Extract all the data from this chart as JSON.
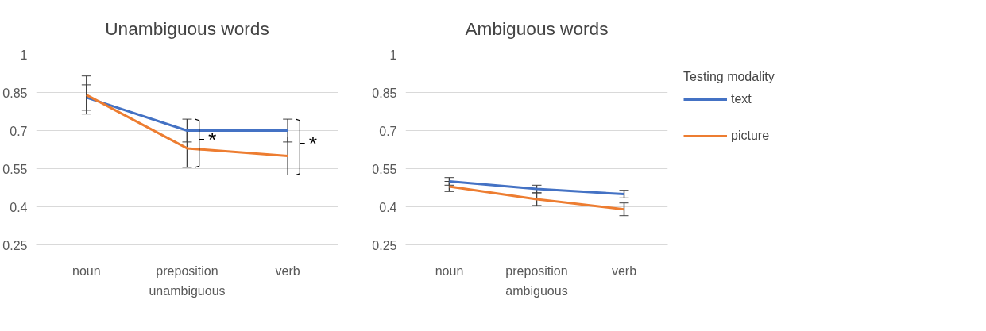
{
  "chart_data": [
    {
      "type": "line",
      "title": "Unambiguous words",
      "xlabel": "unambiguous",
      "categories": [
        "noun",
        "preposition",
        "verb"
      ],
      "series": [
        {
          "color": "#4472c4",
          "values": [
            0.83,
            0.7,
            0.7
          ],
          "errors": [
            0.05,
            0.045,
            0.045
          ]
        },
        {
          "color": "#ed7d31",
          "values": [
            0.84,
            0.63,
            0.6
          ],
          "errors": [
            0.075,
            0.075,
            0.075
          ]
        }
      ],
      "ylim": [
        0.25,
        1
      ],
      "yticks": [
        0.25,
        0.4,
        0.55,
        0.7,
        0.85,
        1
      ],
      "grid": "y",
      "annotations": [
        {
          "text": "*",
          "x": "preposition",
          "y": 0.665
        },
        {
          "text": "*",
          "x": "verb",
          "y": 0.65
        }
      ]
    },
    {
      "type": "line",
      "title": "Ambiguous words",
      "xlabel": "ambiguous",
      "legend_title": "Testing modality",
      "categories": [
        "noun",
        "preposition",
        "verb"
      ],
      "series": [
        {
          "name": "text",
          "color": "#4472c4",
          "values": [
            0.5,
            0.47,
            0.45
          ],
          "errors": [
            0.015,
            0.015,
            0.015
          ]
        },
        {
          "name": "picture",
          "color": "#ed7d31",
          "values": [
            0.48,
            0.43,
            0.39
          ],
          "errors": [
            0.02,
            0.025,
            0.025
          ]
        }
      ],
      "ylim": [
        0.25,
        1
      ],
      "yticks": [
        0.25,
        0.4,
        0.55,
        0.7,
        0.85,
        1
      ],
      "grid": "y",
      "legend": "right"
    }
  ]
}
